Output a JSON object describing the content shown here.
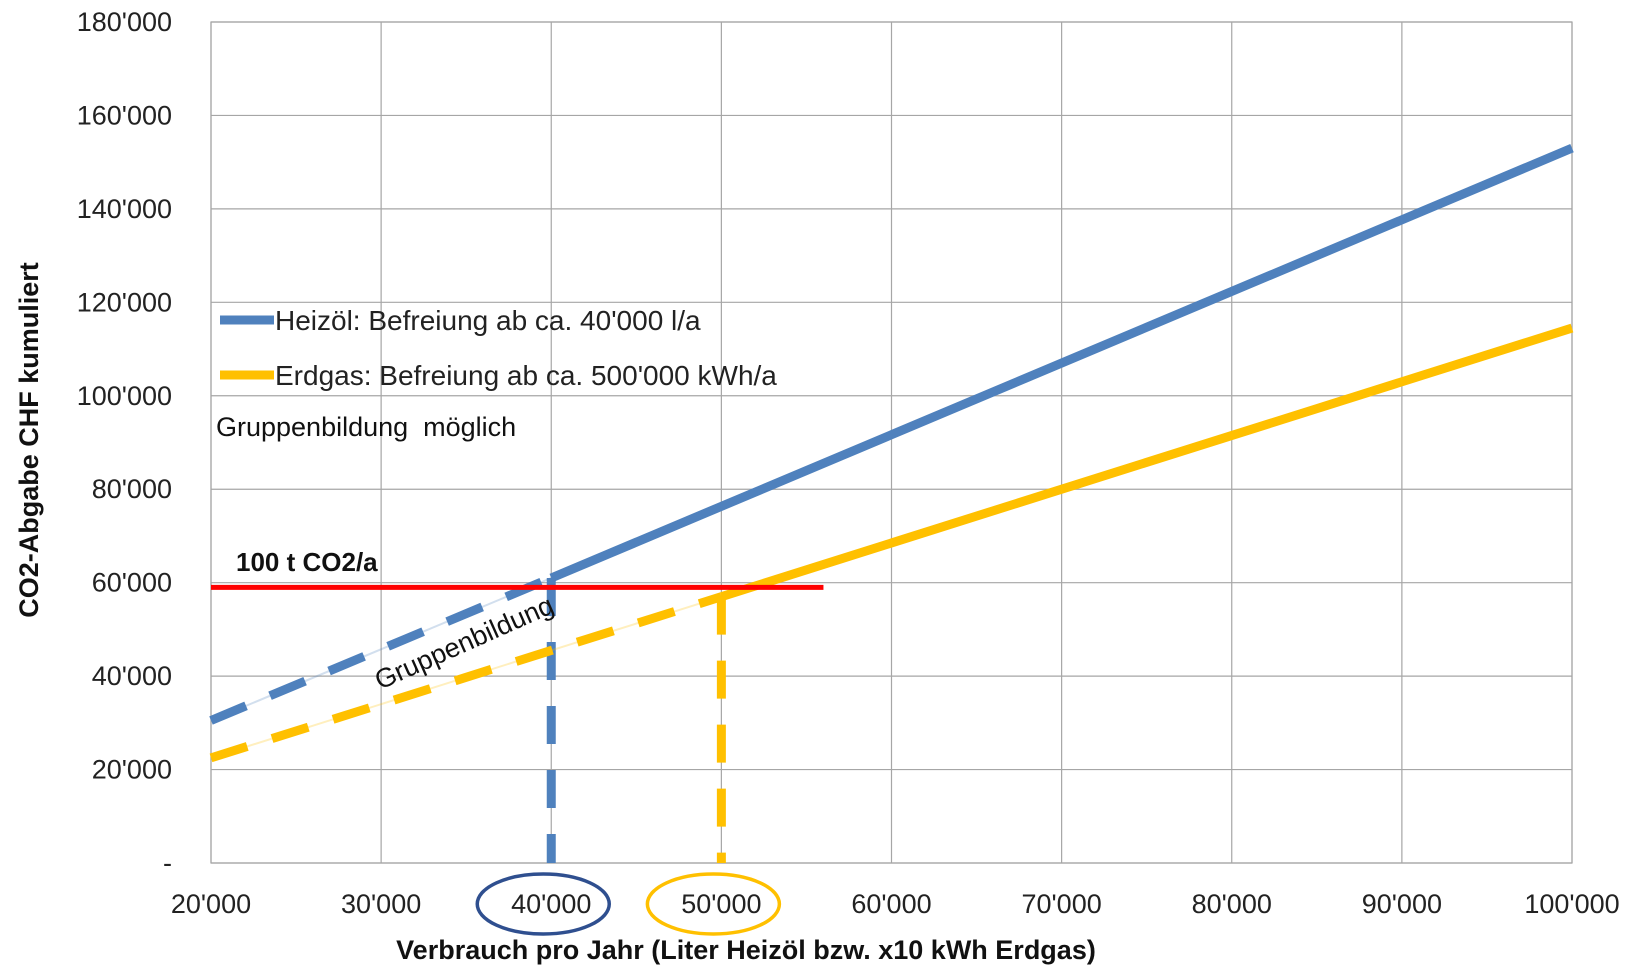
{
  "chart_data": {
    "type": "line",
    "xlabel": "Verbrauch pro Jahr (Liter Heizöl bzw. x10 kWh Erdgas)",
    "ylabel": "CO2-Abgabe CHF kumuliert",
    "xlim": [
      20000,
      100000
    ],
    "ylim": [
      0,
      180000
    ],
    "x_ticks": [
      20000,
      30000,
      40000,
      50000,
      60000,
      70000,
      80000,
      90000,
      100000
    ],
    "x_tick_labels": [
      "20'000",
      "30'000",
      "40'000",
      "50'000",
      "60'000",
      "70'000",
      "80'000",
      "90'000",
      "100'000"
    ],
    "y_ticks": [
      0,
      20000,
      40000,
      60000,
      80000,
      100000,
      120000,
      140000,
      160000,
      180000
    ],
    "y_tick_labels": [
      "-",
      "20'000",
      "40'000",
      "60'000",
      "80'000",
      "100'000",
      "120'000",
      "140'000",
      "160'000",
      "180'000"
    ],
    "grid": true,
    "legend_position": "left-middle",
    "series": [
      {
        "name": "Heizöl: Befreiung ab ca. 40'000 l/a",
        "color": "#4f81bd",
        "x": [
          20000,
          40000,
          100000
        ],
        "y": [
          30500,
          61000,
          153000
        ],
        "dashed_until_x": 40000,
        "drop_line_x": 40000
      },
      {
        "name": "Erdgas: Befreiung ab ca. 500'000 kWh/a",
        "color": "#ffc000",
        "x": [
          20000,
          50000,
          100000
        ],
        "y": [
          22500,
          57000,
          114500
        ],
        "dashed_until_x": 50000,
        "drop_line_x": 50000
      }
    ],
    "threshold": {
      "label": "100 t CO2/a",
      "y": 59000,
      "x_start": 20000,
      "x_end": 56000,
      "color": "#ff0000"
    },
    "annotations": [
      {
        "text": "Gruppenbildung  möglich",
        "kind": "note"
      },
      {
        "text": "Gruppenbildung",
        "kind": "rotated"
      }
    ],
    "highlighted_ticks": [
      {
        "x": 40000,
        "color": "#2f4f8f"
      },
      {
        "x": 50000,
        "color": "#ffc000"
      }
    ]
  }
}
